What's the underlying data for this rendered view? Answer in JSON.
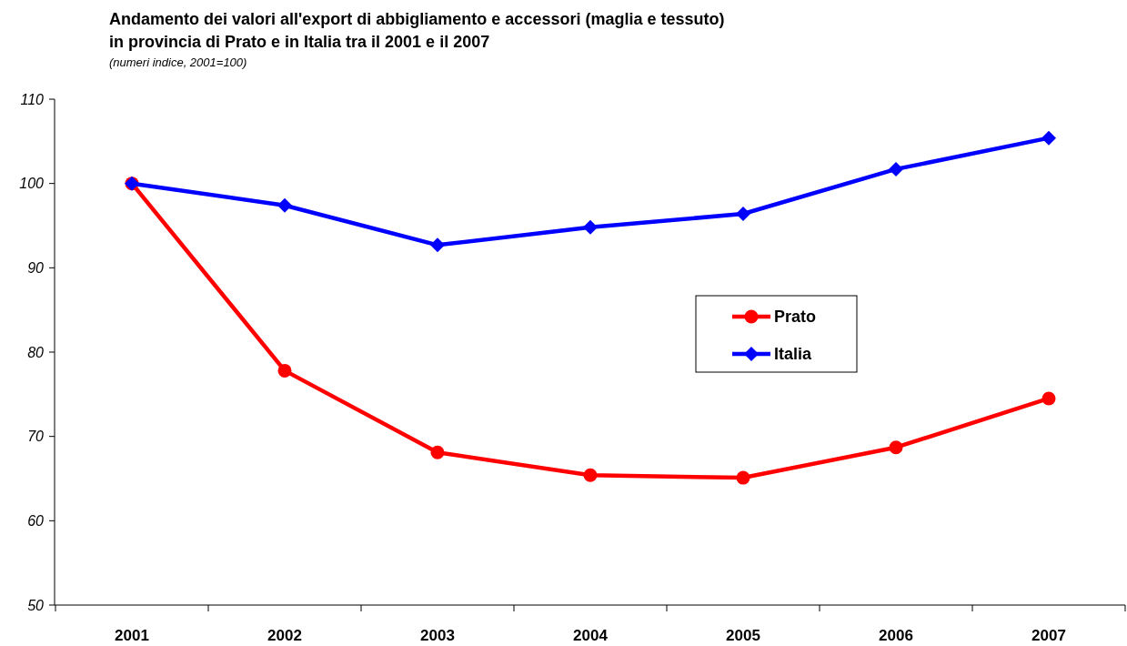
{
  "chart_data": {
    "type": "line",
    "title": "Andamento dei valori all'export di abbigliamento e accessori (maglia e tessuto)\nin provincia di Prato e in Italia tra il 2001 e il 2007",
    "subtitle": "(numeri indice, 2001=100)",
    "categories": [
      "2001",
      "2002",
      "2003",
      "2004",
      "2005",
      "2006",
      "2007"
    ],
    "series": [
      {
        "name": "Prato",
        "color": "#ff0000",
        "marker": "circle",
        "values": [
          100,
          77.8,
          68.1,
          65.4,
          65.1,
          68.7,
          74.5
        ]
      },
      {
        "name": "Italia",
        "color": "#0000ff",
        "marker": "diamond",
        "values": [
          100,
          97.4,
          92.7,
          94.8,
          96.4,
          101.7,
          105.4
        ]
      }
    ],
    "ylim": [
      50,
      110
    ],
    "yticks": [
      50,
      60,
      70,
      80,
      90,
      100,
      110
    ],
    "grid": false,
    "legend": "right"
  }
}
